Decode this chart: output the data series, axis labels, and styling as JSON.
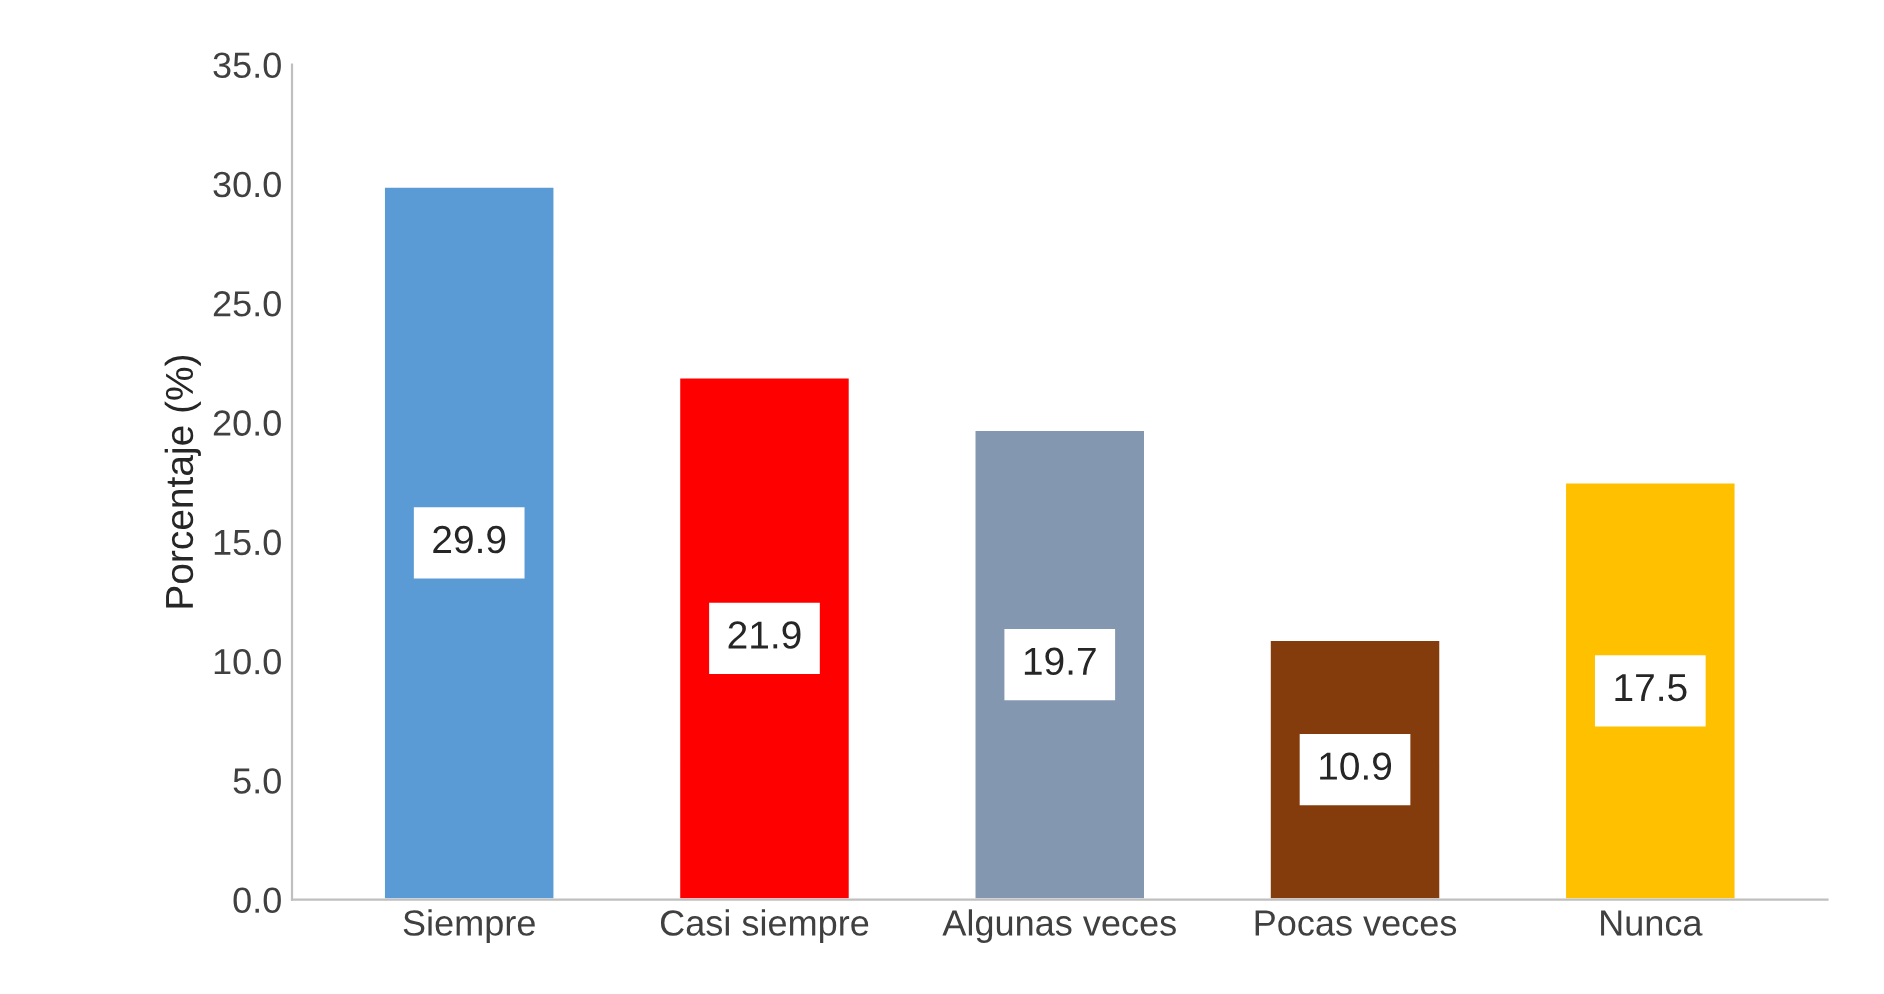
{
  "chart_data": {
    "type": "bar",
    "ylabel": "Porcentaje (%)",
    "categories": [
      "Siempre",
      "Casi siempre",
      "Algunas veces",
      "Pocas veces",
      "Nunca"
    ],
    "values": [
      29.9,
      21.9,
      19.7,
      10.9,
      17.5
    ],
    "colors": [
      "#5b9bd5",
      "#ff0000",
      "#8497b0",
      "#843c0c",
      "#ffc000"
    ],
    "ylim": [
      0,
      35
    ],
    "yticks": [
      {
        "value": 0,
        "label": "0.0"
      },
      {
        "value": 5,
        "label": "5.0"
      },
      {
        "value": 10,
        "label": "10.0"
      },
      {
        "value": 15,
        "label": "15.0"
      },
      {
        "value": 20,
        "label": "20.0"
      },
      {
        "value": 25,
        "label": "25.0"
      },
      {
        "value": 30,
        "label": "30.0"
      },
      {
        "value": 35,
        "label": "35.0"
      }
    ],
    "data_labels": true,
    "grid": false,
    "legend": false
  }
}
